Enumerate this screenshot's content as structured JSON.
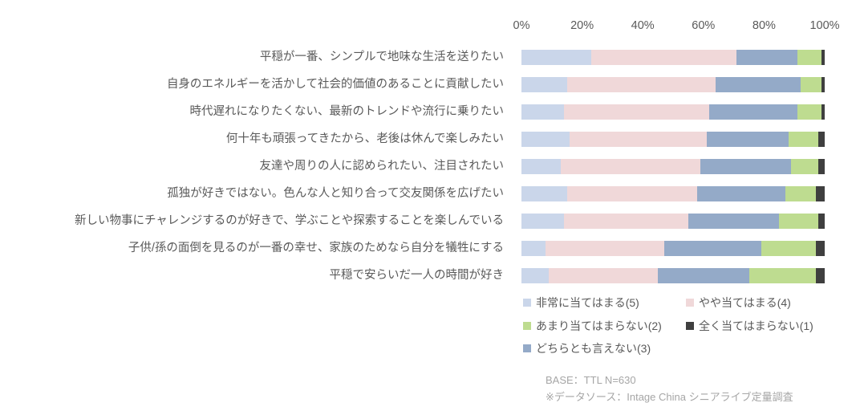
{
  "axis": {
    "ticks": [
      "0%",
      "20%",
      "40%",
      "60%",
      "80%",
      "100%"
    ]
  },
  "chart_data": {
    "type": "bar",
    "stacked": true,
    "orientation": "horizontal",
    "title": "",
    "xlabel": "",
    "ylabel": "",
    "xlim": [
      0,
      100
    ],
    "x_ticks": [
      "0%",
      "20%",
      "40%",
      "60%",
      "80%",
      "100%"
    ],
    "grid": false,
    "legend_position": "bottom-right",
    "categories": [
      "平穏が一番、シンプルで地味な生活を送りたい",
      "自身のエネルギーを活かして社会的価値のあることに貢献したい",
      "時代遅れになりたくない、最新のトレンドや流行に乗りたい",
      "何十年も頑張ってきたから、老後は休んで楽しみたい",
      "友達や周りの人に認められたい、注目されたい",
      "孤独が好きではない。色んな人と知り合って交友関係を広げたい",
      "新しい物事にチャレンジするのが好きで、学ぶことや探索することを楽しんでいる",
      "子供/孫の面倒を見るのが一番の幸せ、家族のためなら自分を犠牲にする",
      "平穏で安らいだ一人の時間が好き"
    ],
    "series": [
      {
        "name": "非常に当てはまる(5)",
        "color": "#cad6ea",
        "values": [
          23,
          15,
          14,
          16,
          13,
          15,
          14,
          8,
          9
        ]
      },
      {
        "name": "やや当てはまる(4)",
        "color": "#f0d8d9",
        "values": [
          48,
          49,
          48,
          45,
          46,
          43,
          41,
          39,
          36
        ]
      },
      {
        "name": "どちらとも言えない(3)",
        "color": "#94aac8",
        "values": [
          20,
          28,
          29,
          27,
          30,
          29,
          30,
          32,
          30
        ]
      },
      {
        "name": "あまり当てはまらない(2)",
        "color": "#bedc90",
        "values": [
          8,
          7,
          8,
          10,
          9,
          10,
          13,
          18,
          22
        ]
      },
      {
        "name": "全く当てはまらない(1)",
        "color": "#3f3f3f",
        "values": [
          1,
          1,
          1,
          2,
          2,
          3,
          2,
          3,
          3
        ]
      }
    ],
    "legend_layout": [
      {
        "series": 0,
        "col": 0,
        "row": 0
      },
      {
        "series": 1,
        "col": 1,
        "row": 0
      },
      {
        "series": 3,
        "col": 0,
        "row": 1
      },
      {
        "series": 4,
        "col": 1,
        "row": 1
      },
      {
        "series": 2,
        "col": 0,
        "row": 2
      }
    ]
  },
  "footer": {
    "base": "BASE：TTL N=630",
    "source": "※データソース：Intage China シニアライブ定量調査"
  }
}
